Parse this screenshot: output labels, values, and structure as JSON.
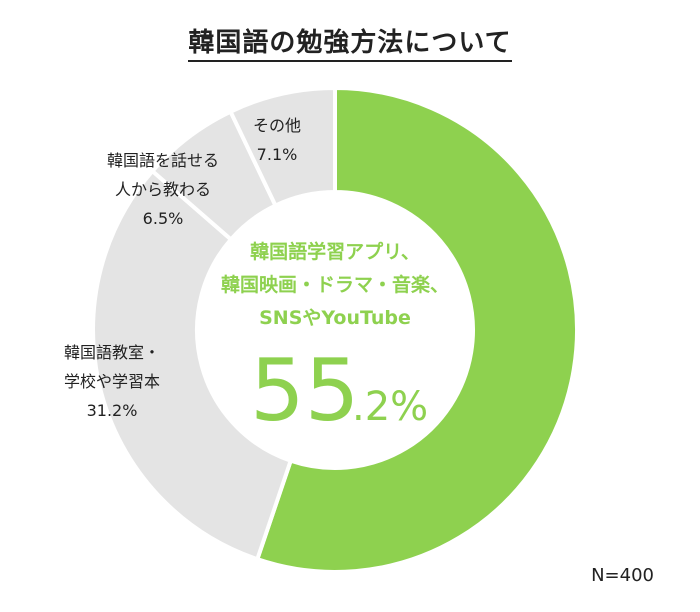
{
  "chart_data": {
    "type": "pie",
    "title": "韓国語の勉強方法について",
    "slices": [
      {
        "label_lines": [
          "韓国語学習アプリ、",
          "韓国映画・ドラマ・音楽、",
          "SNSやYouTube"
        ],
        "value": 55.2,
        "value_text_main": "55",
        "value_text_decimal": ".2%",
        "color": "#8ed14f"
      },
      {
        "label_lines": [
          "韓国語教室・",
          "学校や学習本"
        ],
        "value": 31.2,
        "value_text": "31.2%",
        "color": "#e4e4e4"
      },
      {
        "label_lines": [
          "韓国語を話せる",
          "人から教わる"
        ],
        "value": 6.5,
        "value_text": "6.5%",
        "color": "#e4e4e4"
      },
      {
        "label_lines": [
          "その他"
        ],
        "value": 7.1,
        "value_text": "7.1%",
        "color": "#e4e4e4"
      }
    ],
    "sample_size": "N=400"
  }
}
